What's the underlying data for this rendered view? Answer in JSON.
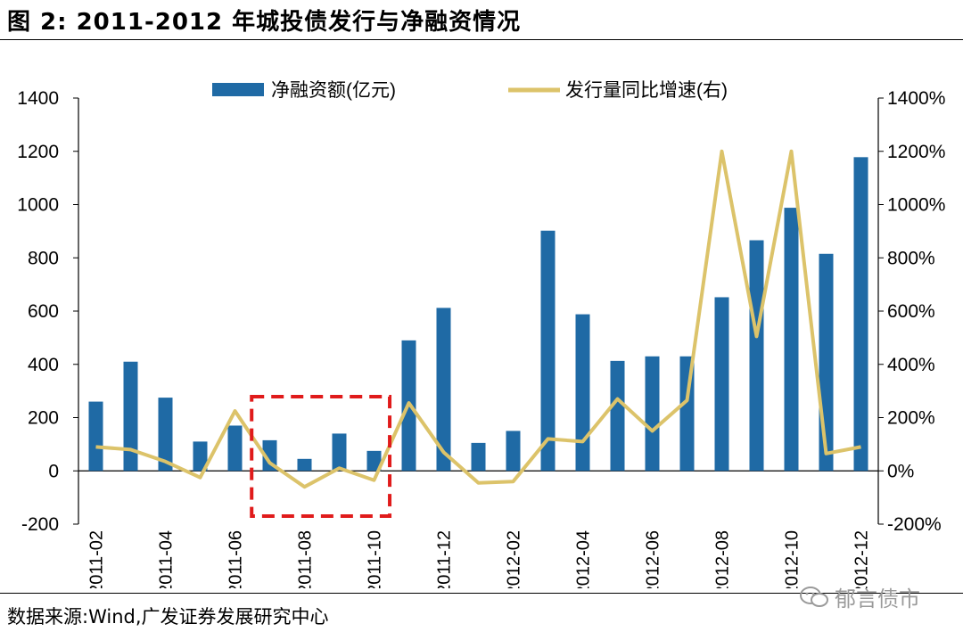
{
  "header": {
    "title": "图 2:  2011-2012 年城投债发行与净融资情况"
  },
  "footer": {
    "source": "数据来源:Wind,广发证券发展研究中心",
    "watermark": "郁言债市"
  },
  "colors": {
    "bar": "#1f6aa5",
    "line": "#dcc36a",
    "highlight": "#e01b1b"
  },
  "chart_data": {
    "type": "bar+line",
    "categories": [
      "2011-02",
      "2011-03",
      "2011-04",
      "2011-05",
      "2011-06",
      "2011-07",
      "2011-08",
      "2011-09",
      "2011-10",
      "2011-11",
      "2011-12",
      "2012-01",
      "2012-02",
      "2012-03",
      "2012-04",
      "2012-05",
      "2012-06",
      "2012-07",
      "2012-08",
      "2012-09",
      "2012-10",
      "2012-11",
      "2012-12"
    ],
    "tick_labels": [
      "2011-02",
      "",
      "2011-04",
      "",
      "2011-06",
      "",
      "2011-08",
      "",
      "2011-10",
      "",
      "2011-12",
      "",
      "2012-02",
      "",
      "2012-04",
      "",
      "2012-06",
      "",
      "2012-08",
      "",
      "2012-10",
      "",
      "2012-12"
    ],
    "series": [
      {
        "name": "净融资额(亿元)",
        "type": "bar",
        "axis": "left",
        "values": [
          260,
          410,
          275,
          110,
          170,
          115,
          45,
          140,
          75,
          490,
          612,
          105,
          150,
          902,
          588,
          413,
          430,
          430,
          652,
          866,
          988,
          815,
          1178
        ]
      },
      {
        "name": "发行量同比增速(右)",
        "type": "line",
        "axis": "right",
        "values": [
          90,
          80,
          35,
          -25,
          225,
          30,
          -60,
          10,
          -35,
          255,
          70,
          -45,
          -40,
          120,
          110,
          270,
          150,
          265,
          1200,
          505,
          1200,
          65,
          90
        ]
      }
    ],
    "left_axis": {
      "min": -200,
      "max": 1400,
      "ticks": [
        "-200",
        "0",
        "200",
        "400",
        "600",
        "800",
        "1000",
        "1200",
        "1400"
      ]
    },
    "right_axis": {
      "min": -200,
      "max": 1400,
      "ticks": [
        "-200%",
        "0%",
        "200%",
        "400%",
        "600%",
        "800%",
        "1000%",
        "1200%",
        "1400%"
      ]
    },
    "highlight_range": [
      "2011-07",
      "2011-10"
    ]
  }
}
